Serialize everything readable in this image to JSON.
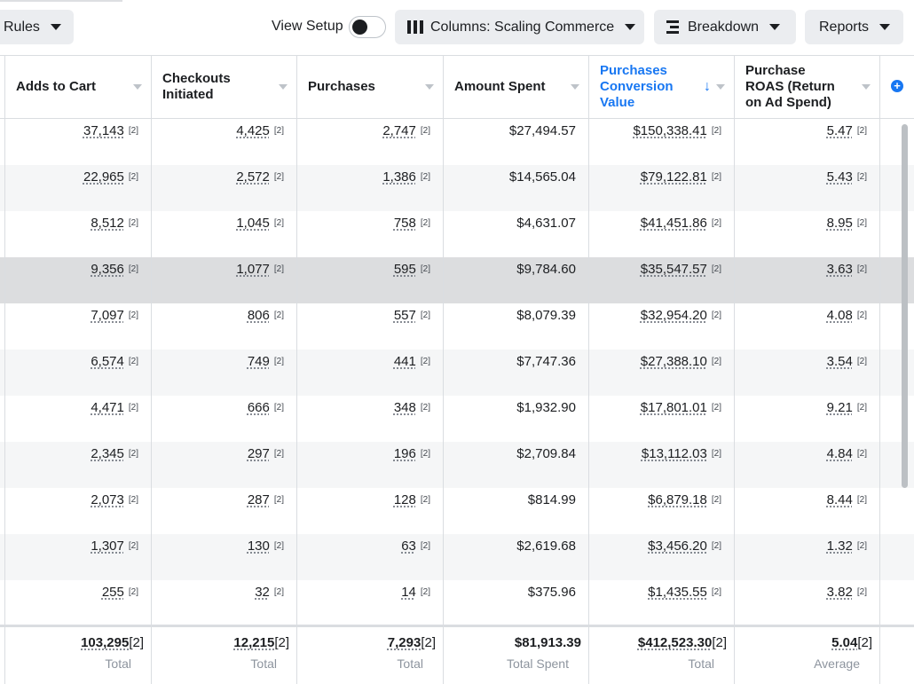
{
  "toolbar": {
    "rules_label": "Rules",
    "view_setup_label": "View Setup",
    "columns_label": "Columns: Scaling Commerce",
    "breakdown_label": "Breakdown",
    "reports_label": "Reports"
  },
  "table": {
    "columns": [
      {
        "label": "Adds to Cart"
      },
      {
        "label": "Checkouts Initiated"
      },
      {
        "label": "Purchases"
      },
      {
        "label": "Amount Spent"
      },
      {
        "label": "Purchases Conversion Value"
      },
      {
        "label": "Purchase ROAS (Return on Ad Spend)"
      }
    ],
    "ref_marker": "[2]",
    "rows": [
      [
        "37,143",
        "4,425",
        "2,747",
        "$27,494.57",
        "$150,338.41",
        "5.47"
      ],
      [
        "22,965",
        "2,572",
        "1,386",
        "$14,565.04",
        "$79,122.81",
        "5.43"
      ],
      [
        "8,512",
        "1,045",
        "758",
        "$4,631.07",
        "$41,451.86",
        "8.95"
      ],
      [
        "9,356",
        "1,077",
        "595",
        "$9,784.60",
        "$35,547.57",
        "3.63"
      ],
      [
        "7,097",
        "806",
        "557",
        "$8,079.39",
        "$32,954.20",
        "4.08"
      ],
      [
        "6,574",
        "749",
        "441",
        "$7,747.36",
        "$27,388.10",
        "3.54"
      ],
      [
        "4,471",
        "666",
        "348",
        "$1,932.90",
        "$17,801.01",
        "9.21"
      ],
      [
        "2,345",
        "297",
        "196",
        "$2,709.84",
        "$13,112.03",
        "4.84"
      ],
      [
        "2,073",
        "287",
        "128",
        "$814.99",
        "$6,879.18",
        "8.44"
      ],
      [
        "1,307",
        "130",
        "63",
        "$2,619.68",
        "$3,456.20",
        "1.32"
      ],
      [
        "255",
        "32",
        "14",
        "$375.96",
        "$1,435.55",
        "3.82"
      ]
    ],
    "totals": [
      {
        "value": "103,295",
        "label": "Total"
      },
      {
        "value": "12,215",
        "label": "Total"
      },
      {
        "value": "7,293",
        "label": "Total"
      },
      {
        "value": "$81,913.39",
        "label": "Total Spent"
      },
      {
        "value": "$412,523.30",
        "label": "Total"
      },
      {
        "value": "5.04",
        "label": "Average"
      }
    ]
  }
}
